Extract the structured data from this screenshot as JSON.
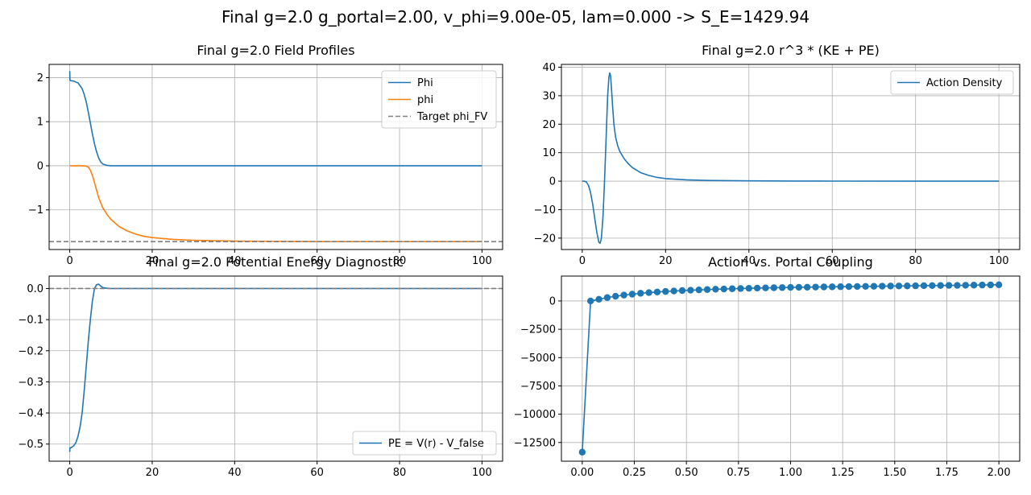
{
  "suptitle": "Final g=2.0 g_portal=2.00, v_phi=9.00e-05, lam=0.000 -> S_E=1429.94",
  "colors": {
    "blue": "#1f77b4",
    "orange": "#ff7f0e",
    "gray": "#808080"
  },
  "chart_data": [
    {
      "id": "field-profiles",
      "type": "line",
      "title": "Final g=2.0 Field Profiles",
      "xlim": [
        -5,
        105
      ],
      "ylim": [
        -1.9,
        2.3
      ],
      "grid": true,
      "legend_position": "upper right",
      "xticks": [
        0,
        20,
        40,
        60,
        80,
        100
      ],
      "xtick_labels": [
        "0",
        "20",
        "40",
        "60",
        "80",
        "100"
      ],
      "yticks": [
        2,
        1,
        0,
        -1
      ],
      "ytick_labels": [
        "2",
        "1",
        "0",
        "−1"
      ],
      "series": [
        {
          "name": "Phi",
          "color": "#1f77b4",
          "style": "solid",
          "x": [
            0,
            0.05,
            0.15,
            0.3,
            1,
            2,
            3,
            3.5,
            4,
            4.5,
            5,
            5.5,
            6,
            6.5,
            7,
            7.5,
            8,
            9,
            10,
            12,
            20,
            40,
            60,
            80,
            100
          ],
          "y": [
            2.15,
            1.95,
            1.93,
            1.93,
            1.92,
            1.88,
            1.75,
            1.62,
            1.45,
            1.22,
            0.97,
            0.72,
            0.5,
            0.32,
            0.18,
            0.09,
            0.04,
            0.01,
            0.0,
            0.0,
            0.0,
            0.0,
            0.0,
            0.0,
            0.0
          ]
        },
        {
          "name": "phi",
          "color": "#ff7f0e",
          "style": "solid",
          "x": [
            0,
            1,
            2,
            3,
            4,
            4.5,
            5,
            5.5,
            6,
            6.5,
            7,
            8,
            9,
            10,
            12,
            14,
            16,
            18,
            20,
            25,
            30,
            40,
            50,
            60,
            80,
            100
          ],
          "y": [
            0.0,
            0.0,
            0.0,
            0.0,
            -0.01,
            -0.03,
            -0.1,
            -0.22,
            -0.38,
            -0.55,
            -0.72,
            -0.95,
            -1.1,
            -1.22,
            -1.38,
            -1.48,
            -1.55,
            -1.6,
            -1.63,
            -1.67,
            -1.69,
            -1.71,
            -1.715,
            -1.72,
            -1.72,
            -1.72
          ]
        },
        {
          "name": "Target phi_FV",
          "color": "#808080",
          "style": "dashed",
          "x": [
            -5,
            105
          ],
          "y": [
            -1.72,
            -1.72
          ]
        }
      ]
    },
    {
      "id": "action-density",
      "type": "line",
      "title": "Final g=2.0 r^3 * (KE + PE)",
      "xlim": [
        -5,
        105
      ],
      "ylim": [
        -24,
        41
      ],
      "grid": true,
      "legend_position": "upper right",
      "xticks": [
        0,
        20,
        40,
        60,
        80,
        100
      ],
      "xtick_labels": [
        "0",
        "20",
        "40",
        "60",
        "80",
        "100"
      ],
      "yticks": [
        40,
        30,
        20,
        10,
        0,
        -10,
        -20
      ],
      "ytick_labels": [
        "40",
        "30",
        "20",
        "10",
        "0",
        "−10",
        "−20"
      ],
      "series": [
        {
          "name": "Action Density",
          "color": "#1f77b4",
          "style": "solid",
          "x": [
            0,
            0.5,
            1,
            1.5,
            2,
            2.5,
            3,
            3.5,
            4,
            4.3,
            4.6,
            5,
            5.4,
            5.8,
            6.1,
            6.4,
            6.6,
            6.8,
            7,
            7.3,
            7.6,
            8,
            8.5,
            9,
            10,
            11,
            12,
            14,
            16,
            18,
            20,
            25,
            30,
            40,
            50,
            60,
            80,
            100
          ],
          "y": [
            0,
            0,
            -0.3,
            -1.5,
            -4,
            -8,
            -13,
            -18,
            -21.5,
            -21.8,
            -20,
            -12,
            2,
            18,
            30,
            36.5,
            38,
            37,
            33,
            26,
            20,
            15.5,
            12.5,
            10.5,
            8,
            6.2,
            4.8,
            3,
            2,
            1.3,
            0.9,
            0.45,
            0.25,
            0.1,
            0.05,
            0.02,
            0,
            0
          ]
        }
      ]
    },
    {
      "id": "potential-energy",
      "type": "line",
      "title": "Final g=2.0 Potential Energy Diagnostic",
      "xlim": [
        -5,
        105
      ],
      "ylim": [
        -0.555,
        0.04
      ],
      "grid": true,
      "legend_position": "lower right",
      "xticks": [
        0,
        20,
        40,
        60,
        80,
        100
      ],
      "xtick_labels": [
        "0",
        "20",
        "40",
        "60",
        "80",
        "100"
      ],
      "yticks": [
        0,
        -0.1,
        -0.2,
        -0.3,
        -0.4,
        -0.5
      ],
      "ytick_labels": [
        "0.0",
        "−0.1",
        "−0.2",
        "−0.3",
        "−0.4",
        "−0.5"
      ],
      "series": [
        {
          "name": "PE = V(r) - V_false",
          "color": "#1f77b4",
          "style": "solid",
          "x": [
            0,
            0.05,
            0.2,
            0.5,
            1,
            1.5,
            2,
            2.5,
            3,
            3.5,
            4,
            4.5,
            5,
            5.5,
            6,
            6.5,
            7,
            7.5,
            8,
            9,
            10,
            15,
            20,
            40,
            60,
            80,
            100
          ],
          "y": [
            -0.525,
            -0.512,
            -0.512,
            -0.51,
            -0.505,
            -0.495,
            -0.475,
            -0.445,
            -0.4,
            -0.33,
            -0.25,
            -0.17,
            -0.1,
            -0.04,
            0.0,
            0.012,
            0.014,
            0.008,
            0.003,
            0.001,
            0.0,
            0.0,
            0.0,
            0.0,
            0.0,
            0.0,
            0.0
          ]
        },
        {
          "name": "",
          "color": "#808080",
          "style": "dashed",
          "x": [
            -5,
            105
          ],
          "y": [
            0,
            0
          ]
        }
      ]
    },
    {
      "id": "action-vs-coupling",
      "type": "scatter",
      "title": "Action vs. Portal Coupling",
      "xlim": [
        -0.1,
        2.1
      ],
      "ylim": [
        -14150,
        2200
      ],
      "grid": true,
      "xticks": [
        0,
        0.25,
        0.5,
        0.75,
        1.0,
        1.25,
        1.5,
        1.75,
        2.0
      ],
      "xtick_labels": [
        "0.00",
        "0.25",
        "0.50",
        "0.75",
        "1.00",
        "1.25",
        "1.50",
        "1.75",
        "2.00"
      ],
      "yticks": [
        0,
        -2500,
        -5000,
        -7500,
        -10000,
        -12500
      ],
      "ytick_labels": [
        "0",
        "−2500",
        "−5000",
        "−7500",
        "−10000",
        "−12500"
      ],
      "series": [
        {
          "name": "",
          "color": "#1f77b4",
          "style": "solid-marker",
          "x": [
            0.0,
            0.04,
            0.08,
            0.12,
            0.16,
            0.2,
            0.24,
            0.28,
            0.32,
            0.36,
            0.4,
            0.44,
            0.48,
            0.52,
            0.56,
            0.6,
            0.64,
            0.68,
            0.72,
            0.76,
            0.8,
            0.84,
            0.88,
            0.92,
            0.96,
            1.0,
            1.04,
            1.08,
            1.12,
            1.16,
            1.2,
            1.24,
            1.28,
            1.32,
            1.36,
            1.4,
            1.44,
            1.48,
            1.52,
            1.56,
            1.6,
            1.64,
            1.68,
            1.72,
            1.76,
            1.8,
            1.84,
            1.88,
            1.92,
            1.96,
            2.0
          ],
          "y": [
            -13350,
            0,
            150,
            300,
            420,
            520,
            600,
            680,
            740,
            790,
            840,
            880,
            920,
            950,
            980,
            1010,
            1040,
            1060,
            1080,
            1100,
            1120,
            1140,
            1155,
            1170,
            1185,
            1200,
            1210,
            1220,
            1230,
            1240,
            1250,
            1260,
            1270,
            1280,
            1290,
            1300,
            1310,
            1320,
            1325,
            1330,
            1340,
            1350,
            1360,
            1370,
            1375,
            1380,
            1390,
            1400,
            1410,
            1420,
            1430
          ]
        }
      ]
    }
  ]
}
